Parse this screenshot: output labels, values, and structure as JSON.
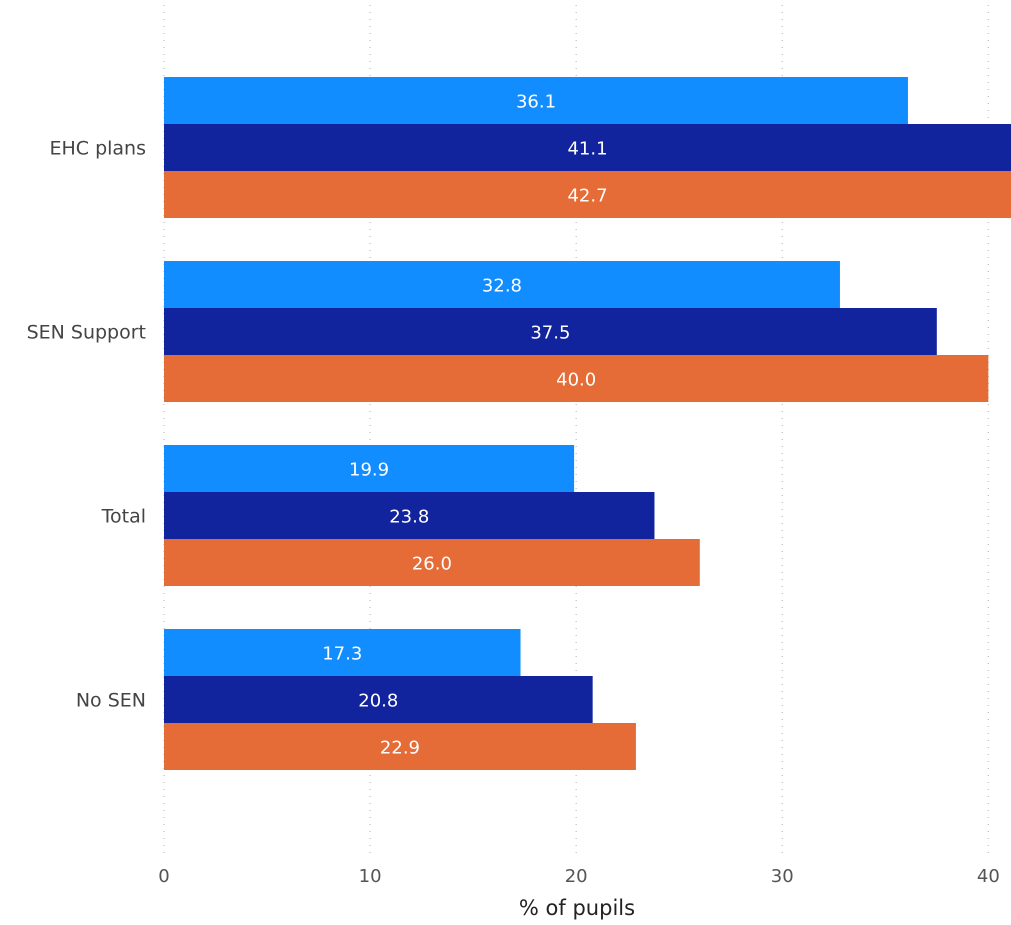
{
  "chart_data": {
    "type": "bar",
    "orientation": "horizontal",
    "categories": [
      "EHC plans",
      "SEN Support",
      "Total",
      "No SEN"
    ],
    "series": [
      {
        "values": [
          36.1,
          32.8,
          19.9,
          17.3
        ],
        "color": "#118dff"
      },
      {
        "values": [
          41.1,
          37.5,
          23.8,
          20.8
        ],
        "color": "#12239e"
      },
      {
        "values": [
          42.7,
          40.0,
          26.0,
          22.9
        ],
        "color": "#e66c37"
      }
    ],
    "value_labels": [
      [
        "36.1",
        "32.8",
        "19.9",
        "17.3"
      ],
      [
        "41.1",
        "37.5",
        "23.8",
        "20.8"
      ],
      [
        "42.7",
        "40.0",
        "26.0",
        "22.9"
      ]
    ],
    "xlabel": "% of pupils",
    "ylabel": "",
    "xticks": [
      "0",
      "10",
      "20",
      "30",
      "40"
    ],
    "xtick_values": [
      0,
      10,
      20,
      30,
      40
    ],
    "xlim": [
      0,
      41.1
    ],
    "grid": "vertical dotted",
    "legend": "none"
  }
}
